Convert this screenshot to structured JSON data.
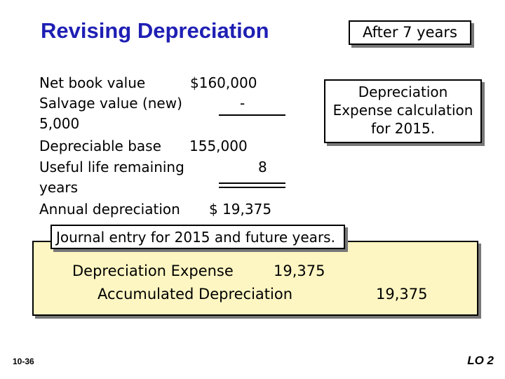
{
  "title": "Revising Depreciation",
  "years_label": "After 7 years",
  "calc_box": {
    "line1": "Depreciation",
    "line2": "Expense calculation",
    "line3": "for 2015."
  },
  "calculation": {
    "net_book_value_label": "Net book value",
    "net_book_value": "$160,000",
    "salvage_label": "Salvage value (new)",
    "salvage_dash": "-",
    "salvage_value": "5,000",
    "depreciable_base_label": "Depreciable base",
    "depreciable_base": "155,000",
    "useful_life_label": "Useful life remaining",
    "useful_life_value": "8",
    "useful_life_unit": "years",
    "annual_label": "Annual depreciation",
    "annual_value": "$ 19,375"
  },
  "journal": {
    "label": "Journal entry for 2015 and future years.",
    "debit_account": "Depreciation Expense",
    "debit_amount": "19,375",
    "credit_account": "Accumulated Depreciation",
    "credit_amount": "19,375"
  },
  "footer": {
    "slide_number": "10-36",
    "lo": "LO 2"
  },
  "colors": {
    "title": "#1f1fb4",
    "journal_background": "#fdf6c2"
  }
}
